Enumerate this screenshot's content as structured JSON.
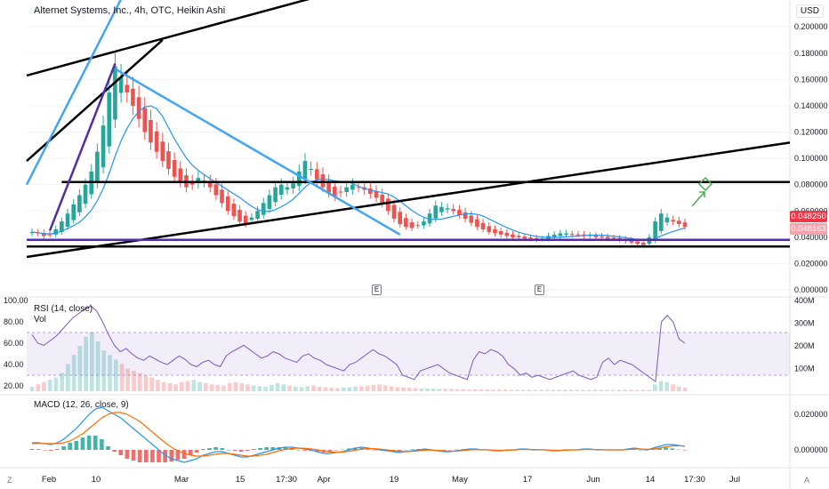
{
  "header": {
    "title": "Alternet Systems, Inc., 4h, OTC, Heikin Ashi",
    "currency": "USD"
  },
  "price_badges": [
    {
      "value": "0.048250",
      "color": "#f23645"
    },
    {
      "value": "0.048163",
      "color": "#f7a3ab"
    }
  ],
  "indicators": {
    "rsi_label": "RSI (14, close)",
    "vol_label": "Vol",
    "macd_label": "MACD (12, 26, close, 9)"
  },
  "markers": {
    "earnings": "E"
  },
  "corner": {
    "left": "Z",
    "right": "A"
  },
  "chart_data": [
    {
      "type": "candlestick",
      "panel": "price",
      "yaxis_ticks": [
        "0.200000",
        "0.180000",
        "0.160000",
        "0.140000",
        "0.120000",
        "0.100000",
        "0.080000",
        "0.060000",
        "0.040000",
        "0.020000",
        "0.000000"
      ],
      "ylim": [
        0,
        0.215
      ],
      "xaxis_ticks": [
        "Feb",
        "10",
        "Mar",
        "15",
        "17:30",
        "Apr",
        "19",
        "May",
        "17",
        "Jun",
        "14",
        "17:30",
        "Jul"
      ],
      "close_series": [
        0.044,
        0.043,
        0.041,
        0.042,
        0.046,
        0.052,
        0.058,
        0.065,
        0.072,
        0.08,
        0.09,
        0.105,
        0.125,
        0.15,
        0.17,
        0.162,
        0.15,
        0.14,
        0.13,
        0.12,
        0.112,
        0.105,
        0.098,
        0.092,
        0.086,
        0.082,
        0.078,
        0.08,
        0.085,
        0.082,
        0.078,
        0.072,
        0.066,
        0.06,
        0.056,
        0.052,
        0.05,
        0.055,
        0.06,
        0.066,
        0.072,
        0.078,
        0.08,
        0.078,
        0.081,
        0.09,
        0.098,
        0.092,
        0.084,
        0.078,
        0.074,
        0.071,
        0.074,
        0.078,
        0.08,
        0.078,
        0.076,
        0.073,
        0.07,
        0.066,
        0.06,
        0.054,
        0.05,
        0.048,
        0.047,
        0.049,
        0.052,
        0.058,
        0.064,
        0.063,
        0.062,
        0.06,
        0.057,
        0.054,
        0.051,
        0.048,
        0.046,
        0.044,
        0.043,
        0.042,
        0.041,
        0.04,
        0.04,
        0.039,
        0.039,
        0.038,
        0.039,
        0.041,
        0.042,
        0.043,
        0.043,
        0.042,
        0.042,
        0.041,
        0.041,
        0.04,
        0.04,
        0.039,
        0.039,
        0.038,
        0.037,
        0.036,
        0.035,
        0.034,
        0.04,
        0.052,
        0.058,
        0.055,
        0.052,
        0.05,
        0.048
      ],
      "lines": [
        {
          "color": "#000000",
          "from": [
            0,
            0.163
          ],
          "to": [
            58,
            0.235
          ]
        },
        {
          "color": "#000000",
          "from": [
            0,
            0.098
          ],
          "to": [
            22,
            0.19
          ]
        },
        {
          "color": "#000000",
          "from": [
            0,
            0.025
          ],
          "to": [
            110,
            0.112
          ]
        },
        {
          "color": "#000000",
          "from": [
            5,
            0.082
          ],
          "to": [
            110,
            0.082
          ]
        },
        {
          "color": "#000000",
          "from": [
            0,
            0.033
          ],
          "to": [
            110,
            0.033
          ]
        },
        {
          "color": "#42a5f5",
          "from": [
            0,
            0.08
          ],
          "to": [
            16,
            0.23
          ]
        },
        {
          "color": "#42a5f5",
          "from": [
            14,
            0.168
          ],
          "to": [
            62,
            0.042
          ]
        },
        {
          "color": "#512da8",
          "from": [
            3,
            0.045
          ],
          "to": [
            14,
            0.172
          ]
        },
        {
          "color": "#512da8",
          "from": [
            0,
            0.038
          ],
          "to": [
            110,
            0.038
          ]
        }
      ],
      "annotation": {
        "type": "arrow-up-right",
        "color": "#4caf50"
      }
    },
    {
      "type": "line",
      "panel": "rsi",
      "yaxis_ticks": [
        "100.00",
        "80.00",
        "60.00",
        "40.00",
        "20.00"
      ],
      "ylim": [
        15,
        100
      ],
      "band": [
        30,
        70
      ],
      "values": [
        68,
        60,
        58,
        62,
        66,
        72,
        78,
        84,
        88,
        92,
        95,
        90,
        80,
        68,
        58,
        52,
        55,
        50,
        46,
        44,
        48,
        45,
        42,
        40,
        44,
        48,
        45,
        40,
        38,
        42,
        44,
        40,
        38,
        48,
        52,
        55,
        58,
        54,
        50,
        46,
        48,
        52,
        50,
        46,
        44,
        42,
        48,
        50,
        46,
        44,
        40,
        38,
        36,
        34,
        40,
        42,
        46,
        50,
        54,
        50,
        48,
        44,
        40,
        30,
        28,
        26,
        34,
        36,
        38,
        40,
        36,
        32,
        30,
        28,
        26,
        44,
        52,
        50,
        54,
        52,
        48,
        40,
        36,
        30,
        32,
        28,
        30,
        28,
        26,
        28,
        30,
        32,
        34,
        30,
        28,
        26,
        28,
        42,
        46,
        40,
        44,
        42,
        40,
        36,
        32,
        28,
        24,
        80,
        86,
        80,
        64,
        60
      ]
    },
    {
      "type": "bar",
      "panel": "volume",
      "yaxis_ticks": [
        "400M",
        "300M",
        "200M",
        "100M"
      ],
      "values": [
        20,
        30,
        40,
        50,
        60,
        80,
        120,
        160,
        200,
        240,
        260,
        220,
        180,
        160,
        140,
        120,
        100,
        90,
        80,
        70,
        60,
        50,
        40,
        35,
        30,
        40,
        45,
        50,
        40,
        35,
        30,
        28,
        25,
        35,
        40,
        35,
        30,
        25,
        22,
        20,
        28,
        35,
        30,
        25,
        20,
        18,
        22,
        25,
        20,
        18,
        15,
        14,
        16,
        18,
        20,
        22,
        24,
        28,
        30,
        26,
        22,
        18,
        16,
        15,
        14,
        12,
        12,
        11,
        10,
        10,
        10,
        9,
        9,
        8,
        8,
        8,
        7,
        7,
        7,
        7,
        6,
        6,
        6,
        6,
        6,
        6,
        6,
        6,
        6,
        6,
        6,
        6,
        6,
        6,
        6,
        6,
        6,
        6,
        6,
        6,
        6,
        6,
        6,
        6,
        30,
        45,
        40,
        30,
        20,
        15
      ]
    },
    {
      "type": "line",
      "panel": "macd",
      "yaxis_ticks": [
        "0.020000",
        "0.000000"
      ],
      "ylim": [
        -0.008,
        0.028
      ],
      "macd": [
        0.004,
        0.004,
        0.0035,
        0.003,
        0.004,
        0.006,
        0.009,
        0.012,
        0.016,
        0.02,
        0.023,
        0.024,
        0.022,
        0.02,
        0.018,
        0.015,
        0.012,
        0.009,
        0.006,
        0.003,
        0.0,
        -0.003,
        -0.005,
        -0.006,
        -0.007,
        -0.006,
        -0.005,
        -0.003,
        -0.002,
        -0.001,
        -0.001,
        -0.002,
        -0.003,
        -0.004,
        -0.004,
        -0.003,
        -0.002,
        -0.001,
        0.0,
        0.001,
        0.0015,
        0.0015,
        0.001,
        0.0005,
        0.0,
        -0.001,
        -0.002,
        -0.002,
        -0.0015,
        -0.001,
        0.0,
        0.001,
        0.0015,
        0.001,
        0.0005,
        0.0,
        -0.0005,
        -0.001,
        -0.0015,
        -0.001,
        -0.0005,
        0.0,
        0.0005,
        0.0,
        -0.0005,
        -0.001,
        -0.001,
        -0.0005,
        0.0,
        0.0005,
        0.0005,
        0.0,
        0.0,
        -0.0005,
        -0.0005,
        0.0,
        0.0,
        0.0005,
        0.0005,
        0.0,
        0.0,
        0.0,
        -0.0005,
        -0.0005,
        0.0,
        0.0,
        0.0,
        0.0005,
        0.0005,
        0.0,
        0.0,
        0.0,
        0.0,
        0.0,
        0.0005,
        0.001,
        0.0005,
        0.0,
        0.001,
        0.002,
        0.003,
        0.003,
        0.0025,
        0.002
      ],
      "signal": [
        0.0035,
        0.0036,
        0.0036,
        0.0035,
        0.0035,
        0.004,
        0.005,
        0.007,
        0.009,
        0.012,
        0.015,
        0.018,
        0.02,
        0.021,
        0.021,
        0.02,
        0.018,
        0.016,
        0.013,
        0.01,
        0.007,
        0.004,
        0.0015,
        -0.0005,
        -0.002,
        -0.003,
        -0.0035,
        -0.0035,
        -0.003,
        -0.0025,
        -0.002,
        -0.002,
        -0.0025,
        -0.003,
        -0.0035,
        -0.0035,
        -0.003,
        -0.0025,
        -0.0015,
        -0.0005,
        0.0003,
        0.0008,
        0.001,
        0.0009,
        0.0006,
        0.0001,
        -0.0006,
        -0.0012,
        -0.0014,
        -0.0012,
        -0.0008,
        -0.0002,
        0.0004,
        0.0007,
        0.0007,
        0.0004,
        0.0,
        -0.0004,
        -0.0008,
        -0.001,
        -0.0008,
        -0.0005,
        -0.0002,
        -0.0001,
        -0.0003,
        -0.0006,
        -0.0008,
        -0.0007,
        -0.0004,
        0.0,
        0.0002,
        0.0001,
        0.0,
        -0.0002,
        -0.0003,
        -0.0002,
        -0.0001,
        0.0002,
        0.0003,
        0.0002,
        0.0001,
        0.0,
        -0.0002,
        -0.0003,
        -0.0002,
        -0.0001,
        0.0,
        0.0002,
        0.0003,
        0.0002,
        0.0001,
        0.0,
        0.0,
        0.0,
        0.0002,
        0.0005,
        0.0005,
        0.0003,
        0.0005,
        0.001,
        0.0017,
        0.0022,
        0.0023,
        0.0022
      ]
    }
  ]
}
